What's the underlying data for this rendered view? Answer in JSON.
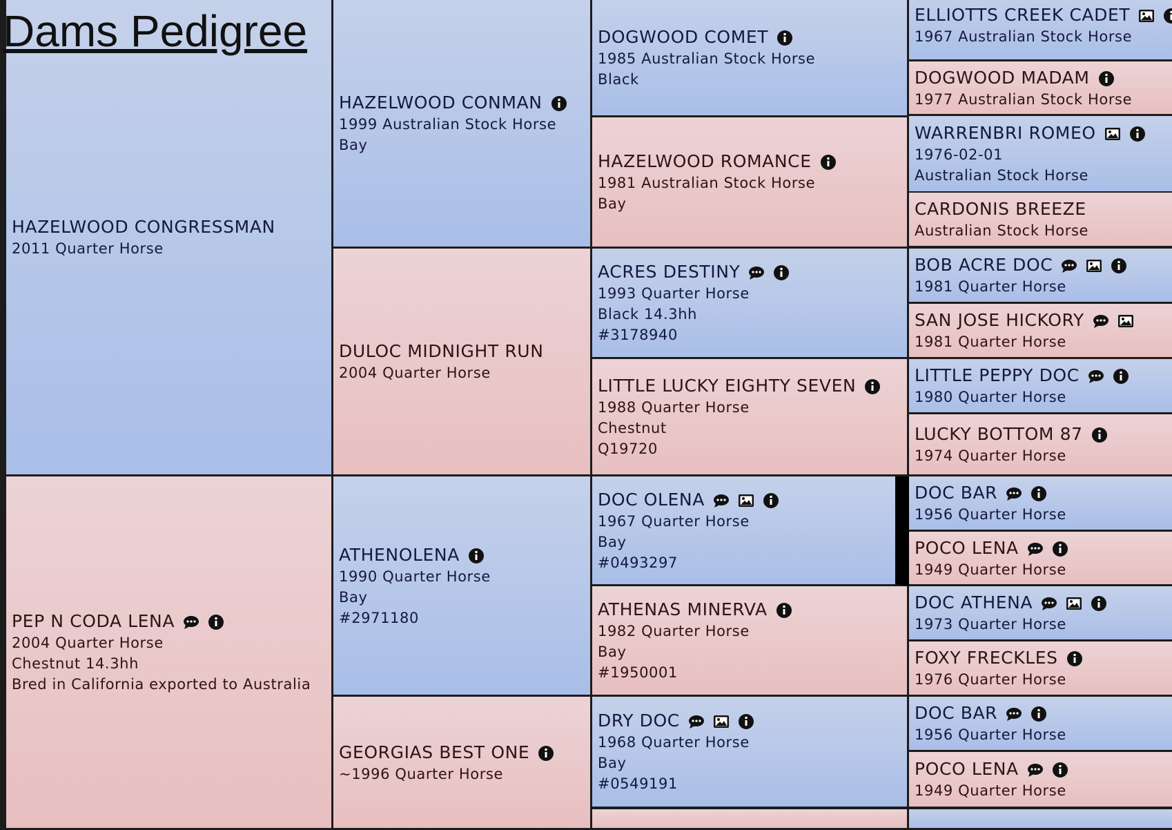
{
  "title": "Dams Pedigree",
  "generations": [
    [
      {
        "name": "HAZELWOOD CONGRESSMAN",
        "details": [
          "2011 Quarter Horse"
        ],
        "icons": []
      },
      {
        "name": "PEP N CODA LENA",
        "details": [
          "2004 Quarter Horse",
          "Chestnut 14.3hh",
          "Bred in California exported to Australia"
        ],
        "icons": [
          "comment",
          "info"
        ]
      }
    ],
    [
      {
        "name": "HAZELWOOD CONMAN",
        "details": [
          "1999 Australian Stock Horse",
          "Bay"
        ],
        "icons": [
          "info"
        ]
      },
      {
        "name": "DULOC MIDNIGHT RUN",
        "details": [
          "2004 Quarter Horse"
        ],
        "icons": []
      },
      {
        "name": "ATHENOLENA",
        "details": [
          "1990 Quarter Horse",
          "Bay",
          "#2971180"
        ],
        "icons": [
          "info"
        ]
      },
      {
        "name": "GEORGIAS BEST ONE",
        "details": [
          "~1996 Quarter Horse"
        ],
        "icons": [
          "info"
        ]
      }
    ],
    [
      {
        "name": "DOGWOOD COMET",
        "details": [
          "1985 Australian Stock Horse",
          "Black"
        ],
        "icons": [
          "info"
        ]
      },
      {
        "name": "HAZELWOOD ROMANCE",
        "details": [
          "1981 Australian Stock Horse",
          "Bay"
        ],
        "icons": [
          "info"
        ]
      },
      {
        "name": "ACRES DESTINY",
        "details": [
          "1993 Quarter Horse",
          "Black 14.3hh",
          "#3178940"
        ],
        "icons": [
          "comment",
          "info"
        ]
      },
      {
        "name": "LITTLE LUCKY EIGHTY SEVEN",
        "details": [
          "1988 Quarter Horse",
          "Chestnut",
          "Q19720"
        ],
        "icons": [
          "info"
        ]
      },
      {
        "name": "DOC OLENA",
        "details": [
          "1967 Quarter Horse",
          "Bay",
          "#0493297"
        ],
        "icons": [
          "comment",
          "image",
          "info"
        ]
      },
      {
        "name": "ATHENAS MINERVA",
        "details": [
          "1982 Quarter Horse",
          "Bay",
          "#1950001"
        ],
        "icons": [
          "info"
        ]
      },
      {
        "name": "DRY DOC",
        "details": [
          "1968 Quarter Horse",
          "Bay",
          "#0549191"
        ],
        "icons": [
          "comment",
          "image",
          "info"
        ]
      }
    ],
    [
      {
        "name": "ELLIOTTS CREEK CADET",
        "details": [
          "1967 Australian Stock Horse"
        ],
        "icons": [
          "image",
          "info"
        ]
      },
      {
        "name": "DOGWOOD MADAM",
        "details": [
          "1977 Australian Stock Horse"
        ],
        "icons": [
          "info"
        ]
      },
      {
        "name": "WARRENBRI ROMEO",
        "details": [
          "1976-02-01",
          "Australian Stock Horse"
        ],
        "icons": [
          "image",
          "info"
        ]
      },
      {
        "name": "CARDONIS BREEZE",
        "details": [
          "Australian Stock Horse"
        ],
        "icons": []
      },
      {
        "name": "BOB ACRE DOC",
        "details": [
          "1981 Quarter Horse"
        ],
        "icons": [
          "comment",
          "image",
          "info"
        ]
      },
      {
        "name": "SAN JOSE HICKORY",
        "details": [
          "1981 Quarter Horse"
        ],
        "icons": [
          "comment",
          "image"
        ]
      },
      {
        "name": "LITTLE PEPPY DOC",
        "details": [
          "1980 Quarter Horse"
        ],
        "icons": [
          "comment",
          "info"
        ]
      },
      {
        "name": "LUCKY BOTTOM 87",
        "details": [
          "1974 Quarter Horse"
        ],
        "icons": [
          "info"
        ]
      },
      {
        "name": "DOC BAR",
        "details": [
          "1956 Quarter Horse"
        ],
        "icons": [
          "comment",
          "info"
        ]
      },
      {
        "name": "POCO LENA",
        "details": [
          "1949 Quarter Horse"
        ],
        "icons": [
          "comment",
          "info"
        ]
      },
      {
        "name": "DOC ATHENA",
        "details": [
          "1973 Quarter Horse"
        ],
        "icons": [
          "comment",
          "image",
          "info"
        ]
      },
      {
        "name": "FOXY FRECKLES",
        "details": [
          "1976 Quarter Horse"
        ],
        "icons": [
          "info"
        ]
      },
      {
        "name": "DOC BAR",
        "details": [
          "1956 Quarter Horse"
        ],
        "icons": [
          "comment",
          "info"
        ]
      },
      {
        "name": "POCO LENA",
        "details": [
          "1949 Quarter Horse"
        ],
        "icons": [
          "comment",
          "info"
        ]
      }
    ]
  ]
}
